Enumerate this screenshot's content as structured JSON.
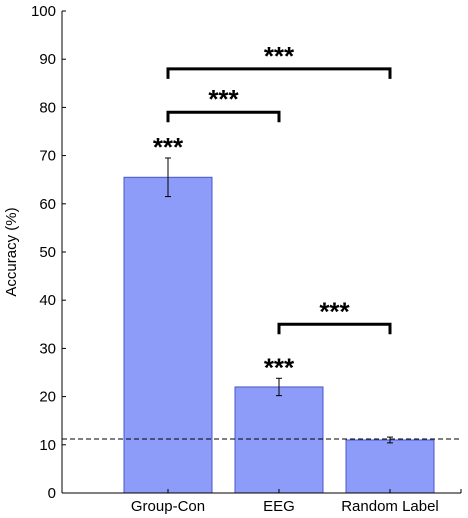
{
  "chart_data": {
    "type": "bar",
    "categories": [
      "Group-Con",
      "EEG",
      "Random Label"
    ],
    "values": [
      65.5,
      22.0,
      11.0
    ],
    "errors": [
      4.0,
      1.8,
      0.6
    ],
    "ylabel": "Accuracy (%)",
    "xlabel": "",
    "ylim": [
      0,
      100
    ],
    "yticks": [
      "0",
      "10",
      "20",
      "30",
      "40",
      "50",
      "60",
      "70",
      "80",
      "90",
      "100"
    ],
    "bar_color": "#8c9cf8",
    "bar_edge_color": "#4a56c8",
    "reference_line": {
      "value": 11.2,
      "style": "dashed"
    },
    "bar_annotations": [
      {
        "bar": 0,
        "text": "***"
      },
      {
        "bar": 1,
        "text": "***"
      }
    ],
    "comparisons": [
      {
        "from": 0,
        "to": 1,
        "y": 79,
        "text": "***"
      },
      {
        "from": 0,
        "to": 2,
        "y": 88,
        "text": "***"
      },
      {
        "from": 1,
        "to": 2,
        "y": 35,
        "text": "***"
      }
    ]
  }
}
